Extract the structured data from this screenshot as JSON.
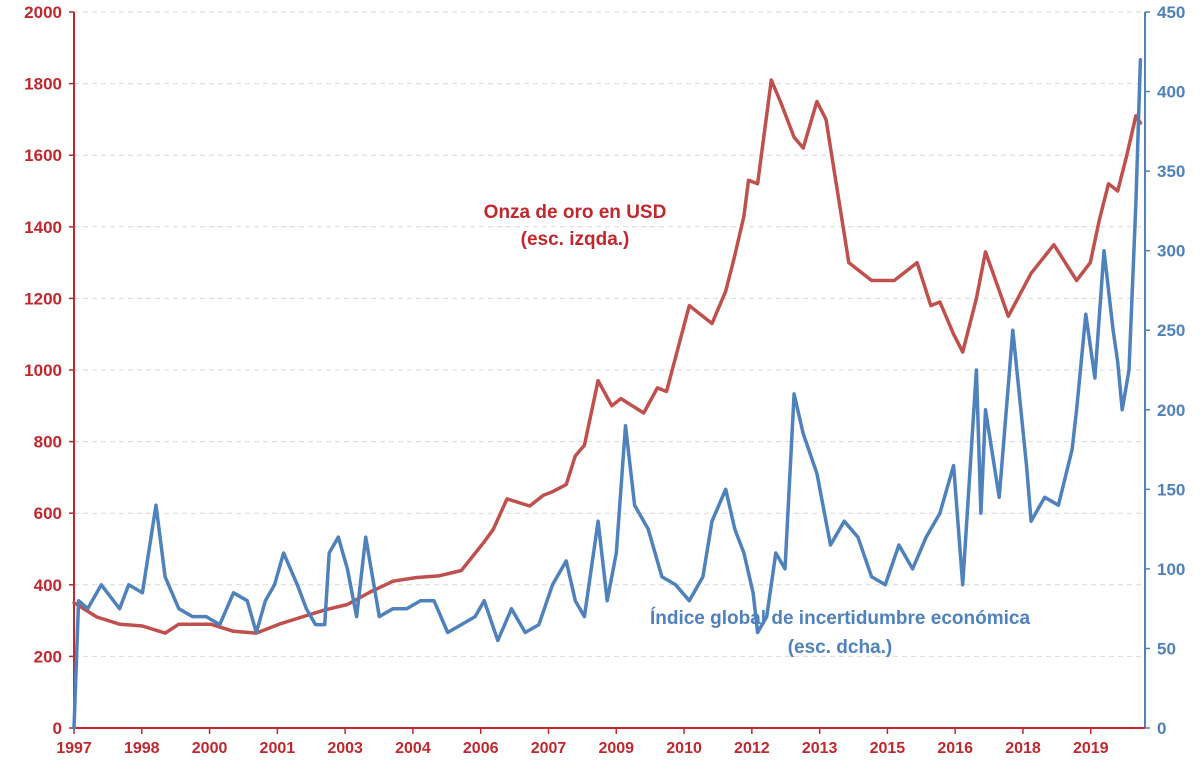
{
  "chart_data": {
    "type": "line",
    "title": "",
    "left_axis": {
      "ylim": [
        0,
        2000
      ],
      "ticks": [
        0,
        200,
        400,
        600,
        800,
        1000,
        1200,
        1400,
        1600,
        1800,
        2000
      ],
      "color": "#C0282E"
    },
    "right_axis": {
      "ylim": [
        0,
        450
      ],
      "ticks": [
        0,
        50,
        100,
        150,
        200,
        250,
        300,
        350,
        400,
        450
      ],
      "color": "#4F81BD"
    },
    "x_tick_labels": [
      "1997",
      "1998",
      "2000",
      "2001",
      "2003",
      "2004",
      "2006",
      "2007",
      "2009",
      "2010",
      "2012",
      "2013",
      "2015",
      "2016",
      "2018",
      "2019"
    ],
    "x_range": [
      1997.0,
      2020.5
    ],
    "grid": "horizontal dashed",
    "annotations": {
      "gold_line1": "Onza de oro en USD",
      "gold_line2": "(esc. izqda.)",
      "epu_line1": "Índice global de incertidumbre económica",
      "epu_line2": "(esc. dcha.)"
    },
    "series": [
      {
        "name": "Onza de oro en USD",
        "axis": "left",
        "color": "#C0504D",
        "x": [
          1997.0,
          1997.5,
          1998.0,
          1998.5,
          1999.0,
          1999.3,
          1999.7,
          2000.0,
          2000.5,
          2001.0,
          2001.5,
          2002.0,
          2002.5,
          2003.0,
          2003.5,
          2004.0,
          2004.5,
          2005.0,
          2005.5,
          2006.0,
          2006.2,
          2006.5,
          2007.0,
          2007.3,
          2007.5,
          2007.8,
          2008.0,
          2008.2,
          2008.5,
          2008.8,
          2009.0,
          2009.5,
          2009.8,
          2010.0,
          2010.5,
          2011.0,
          2011.3,
          2011.5,
          2011.7,
          2011.8,
          2012.0,
          2012.3,
          2012.5,
          2012.8,
          2013.0,
          2013.3,
          2013.5,
          2014.0,
          2014.5,
          2015.0,
          2015.5,
          2015.8,
          2016.0,
          2016.3,
          2016.5,
          2016.8,
          2017.0,
          2017.5,
          2018.0,
          2018.5,
          2018.8,
          2019.0,
          2019.3,
          2019.5,
          2019.7,
          2019.9,
          2020.1,
          2020.3,
          2020.4
        ],
        "values": [
          350,
          310,
          290,
          285,
          265,
          290,
          290,
          290,
          270,
          265,
          290,
          310,
          330,
          345,
          380,
          410,
          420,
          425,
          440,
          520,
          555,
          640,
          620,
          650,
          660,
          680,
          760,
          790,
          970,
          900,
          920,
          880,
          950,
          940,
          1180,
          1130,
          1220,
          1320,
          1430,
          1530,
          1520,
          1810,
          1750,
          1650,
          1620,
          1750,
          1700,
          1300,
          1250,
          1250,
          1300,
          1180,
          1190,
          1100,
          1050,
          1200,
          1330,
          1150,
          1270,
          1350,
          1290,
          1250,
          1300,
          1420,
          1520,
          1500,
          1600,
          1710,
          1690
        ]
      },
      {
        "name": "Índice global de incertidumbre económica",
        "axis": "right",
        "color": "#4F81BD",
        "x": [
          1997.0,
          1997.1,
          1997.3,
          1997.6,
          1998.0,
          1998.2,
          1998.5,
          1998.8,
          1999.0,
          1999.3,
          1999.6,
          1999.9,
          2000.2,
          2000.5,
          2000.8,
          2001.0,
          2001.2,
          2001.4,
          2001.6,
          2001.9,
          2002.1,
          2002.3,
          2002.5,
          2002.6,
          2002.8,
          2003.0,
          2003.2,
          2003.4,
          2003.7,
          2004.0,
          2004.3,
          2004.6,
          2004.9,
          2005.2,
          2005.5,
          2005.8,
          2006.0,
          2006.3,
          2006.6,
          2006.9,
          2007.2,
          2007.5,
          2007.8,
          2008.0,
          2008.2,
          2008.5,
          2008.7,
          2008.9,
          2009.1,
          2009.3,
          2009.6,
          2009.9,
          2010.2,
          2010.5,
          2010.8,
          2011.0,
          2011.3,
          2011.5,
          2011.7,
          2011.9,
          2012.0,
          2012.2,
          2012.4,
          2012.6,
          2012.8,
          2013.0,
          2013.3,
          2013.6,
          2013.9,
          2014.2,
          2014.5,
          2014.8,
          2015.1,
          2015.4,
          2015.7,
          2016.0,
          2016.3,
          2016.5,
          2016.8,
          2016.9,
          2017.0,
          2017.3,
          2017.6,
          2017.9,
          2018.0,
          2018.3,
          2018.6,
          2018.9,
          2019.0,
          2019.2,
          2019.4,
          2019.6,
          2019.8,
          2019.9,
          2020.0,
          2020.15,
          2020.3,
          2020.4
        ],
        "values": [
          0,
          80,
          75,
          90,
          75,
          90,
          85,
          140,
          95,
          75,
          70,
          70,
          65,
          85,
          80,
          60,
          80,
          90,
          110,
          90,
          75,
          65,
          65,
          110,
          120,
          100,
          70,
          120,
          70,
          75,
          75,
          80,
          80,
          60,
          65,
          70,
          80,
          55,
          75,
          60,
          65,
          90,
          105,
          80,
          70,
          130,
          80,
          110,
          190,
          140,
          125,
          95,
          90,
          80,
          95,
          130,
          150,
          125,
          110,
          85,
          60,
          70,
          110,
          100,
          210,
          185,
          160,
          115,
          130,
          120,
          95,
          90,
          115,
          100,
          120,
          135,
          165,
          90,
          225,
          135,
          200,
          145,
          250,
          165,
          130,
          145,
          140,
          175,
          200,
          260,
          220,
          300,
          250,
          230,
          200,
          225,
          330,
          420
        ]
      }
    ]
  }
}
